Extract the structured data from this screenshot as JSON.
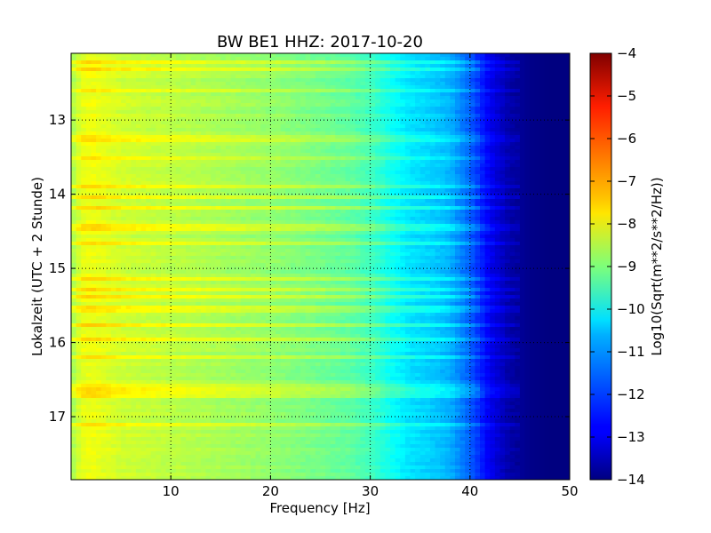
{
  "chart_data": {
    "type": "heatmap",
    "title": "BW BE1 HHZ: 2017-10-20",
    "xlabel": "Frequency [Hz]",
    "ylabel": "Lokalzeit (UTC + 2 Stunde)",
    "xlim": [
      0,
      50
    ],
    "ylim": [
      12.1,
      17.85
    ],
    "x_ticks": [
      10,
      20,
      30,
      40,
      50
    ],
    "x_tick_labels": [
      "10",
      "20",
      "30",
      "40",
      "50"
    ],
    "y_ticks": [
      13,
      14,
      15,
      16,
      17
    ],
    "y_tick_labels": [
      "13",
      "14",
      "15",
      "16",
      "17"
    ],
    "y_inverted": true,
    "grid": true,
    "colorbar": {
      "label": "Log10(Sqrt(m**2/s**2/Hz))",
      "min": -14,
      "max": -4,
      "colormap": "jet",
      "ticks": [
        -4,
        -5,
        -6,
        -7,
        -8,
        -9,
        -10,
        -11,
        -12,
        -13,
        -14
      ],
      "tick_labels": [
        "−4",
        "−5",
        "−6",
        "−7",
        "−8",
        "−9",
        "−10",
        "−11",
        "−12",
        "−13",
        "−14"
      ]
    },
    "spectrum_profile": {
      "frequency_hz": [
        0,
        1,
        2,
        3,
        5,
        10,
        15,
        20,
        25,
        28,
        30,
        32,
        34,
        36,
        38,
        40,
        42,
        44,
        46,
        48,
        50
      ],
      "log10_amplitude": [
        -8.7,
        -8.0,
        -7.9,
        -8.0,
        -8.2,
        -8.4,
        -8.6,
        -8.8,
        -9.1,
        -9.3,
        -9.6,
        -10.1,
        -10.5,
        -10.7,
        -11.0,
        -11.8,
        -12.9,
        -13.6,
        -13.9,
        -14.0,
        -14.0
      ]
    },
    "bright_bands_hour": [
      12.22,
      12.3,
      12.62,
      13.25,
      13.52,
      13.88,
      14.05,
      14.2,
      14.45,
      14.65,
      15.15,
      15.3,
      15.38,
      15.55,
      15.75,
      15.95,
      16.18,
      16.6,
      16.7,
      17.12
    ]
  }
}
